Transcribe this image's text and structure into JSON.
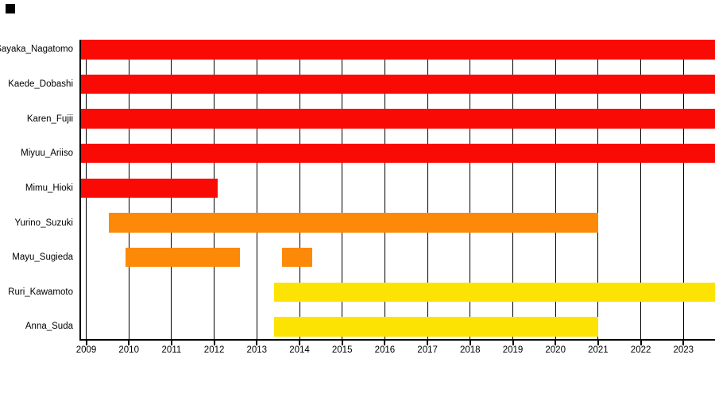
{
  "chart_data": {
    "type": "bar",
    "variant": "horizontal-gantt-timeline",
    "title": "",
    "xlabel": "",
    "ylabel": "",
    "grid": true,
    "legend": false,
    "x_range": [
      2008.86,
      2023.74
    ],
    "x_ticks": [
      "2009",
      "2010",
      "2011",
      "2012",
      "2013",
      "2014",
      "2015",
      "2016",
      "2017",
      "2018",
      "2019",
      "2020",
      "2021",
      "2022",
      "2023"
    ],
    "colors": {
      "red": "#fa0a05",
      "orange": "#fc8908",
      "yellow": "#fce303"
    },
    "rows": [
      {
        "label": "Sayaka_Nagatomo",
        "color": "#fa0a05",
        "segments": [
          [
            2008.86,
            2023.74
          ]
        ]
      },
      {
        "label": "Kaede_Dobashi",
        "color": "#fa0a05",
        "segments": [
          [
            2008.86,
            2023.74
          ]
        ]
      },
      {
        "label": "Karen_Fujii",
        "color": "#fa0a05",
        "segments": [
          [
            2008.86,
            2023.74
          ]
        ]
      },
      {
        "label": "Miyuu_Ariiso",
        "color": "#fa0a05",
        "segments": [
          [
            2008.86,
            2023.74
          ]
        ]
      },
      {
        "label": "Mimu_Hioki",
        "color": "#fa0a05",
        "segments": [
          [
            2008.86,
            2012.08
          ]
        ]
      },
      {
        "label": "Yurino_Suzuki",
        "color": "#fc8908",
        "segments": [
          [
            2009.53,
            2021.0
          ]
        ]
      },
      {
        "label": "Mayu_Sugieda",
        "color": "#fc8908",
        "segments": [
          [
            2009.92,
            2012.6
          ],
          [
            2013.59,
            2014.3
          ]
        ]
      },
      {
        "label": "Ruri_Kawamoto",
        "color": "#fce303",
        "segments": [
          [
            2013.4,
            2023.74
          ]
        ]
      },
      {
        "label": "Anna_Suda",
        "color": "#fce303",
        "segments": [
          [
            2013.4,
            2021.0
          ]
        ]
      }
    ],
    "decorations": {
      "corner_square_color": "#000000"
    }
  }
}
